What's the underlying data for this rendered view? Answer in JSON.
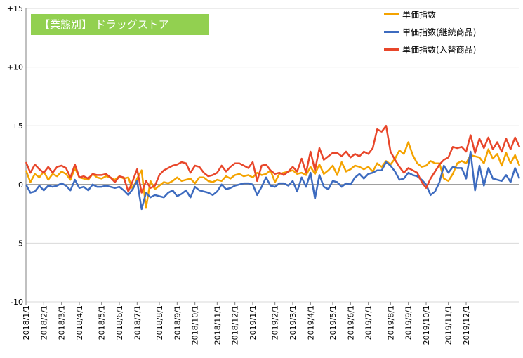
{
  "badge": {
    "label": "【業態別】 ドラッグストア"
  },
  "colors": {
    "s1": "#f4a300",
    "s2": "#3d6bbf",
    "s3": "#e8462a",
    "badge": "#92d050",
    "grid": "#d9d9d9",
    "axis": "#808080"
  },
  "chart_data": {
    "type": "line",
    "ylim": [
      -10,
      15
    ],
    "yticks": [
      -10,
      -5,
      0,
      5,
      10,
      15
    ],
    "ytick_labels": [
      "-10",
      "-5",
      "0",
      "+5",
      "+10",
      "+15"
    ],
    "xtick_labels": [
      "2018/1/1",
      "2018/2/1",
      "2018/3/1",
      "2018/4/1",
      "2018/5/1",
      "2018/6/1",
      "2018/7/1",
      "2018/8/1",
      "2018/9/1",
      "2018/10/1",
      "2018/11/1",
      "2018/12/1",
      "2019/1/1",
      "2019/2/1",
      "2019/3/1",
      "2019/4/1",
      "2019/5/1",
      "2019/6/1",
      "2019/7/1",
      "2019/8/1",
      "2019/9/1",
      "2019/10/1",
      "2019/11/1",
      "2019/12/1"
    ],
    "xtick_index": [
      0,
      4,
      8,
      12,
      17,
      21,
      25,
      30,
      34,
      38,
      43,
      47,
      51,
      56,
      60,
      64,
      69,
      73,
      77,
      82,
      86,
      90,
      95,
      99
    ],
    "grid": true,
    "legend_position": "top-right",
    "series": [
      {
        "name": "単価指数",
        "values": [
          1.2,
          0.2,
          0.9,
          0.6,
          1.1,
          0.4,
          0.9,
          0.7,
          1.1,
          0.9,
          0.4,
          1.4,
          0.6,
          0.5,
          0.4,
          0.9,
          0.6,
          0.5,
          0.7,
          0.6,
          0.4,
          0.7,
          0.5,
          0.6,
          -0.4,
          0.5,
          1.2,
          -2.0,
          0.3,
          -0.4,
          -0.1,
          0.2,
          0.1,
          0.3,
          0.6,
          0.3,
          0.4,
          0.5,
          0.1,
          0.6,
          0.6,
          0.3,
          0.2,
          0.4,
          0.3,
          0.7,
          0.5,
          0.8,
          0.9,
          0.7,
          0.8,
          0.6,
          1.0,
          0.8,
          0.9,
          1.2,
          0.2,
          0.9,
          1.0,
          1.1,
          1.2,
          0.9,
          1.0,
          0.8,
          1.5,
          0.9,
          1.7,
          0.9,
          1.2,
          1.6,
          0.8,
          1.9,
          1.1,
          1.3,
          1.6,
          1.5,
          1.3,
          1.5,
          1.1,
          1.8,
          1.5,
          2.0,
          1.7,
          2.2,
          2.9,
          2.6,
          3.6,
          2.5,
          1.8,
          1.5,
          1.6,
          2.0,
          1.8,
          1.8,
          0.5,
          0.3,
          0.9,
          1.8,
          2.0,
          1.8,
          2.5,
          2.4,
          2.3,
          1.8,
          3.0,
          2.2,
          2.6,
          1.6,
          2.7,
          1.8,
          2.5,
          1.6
        ]
      },
      {
        "name": "単価指数(継続商品)",
        "values": [
          0.0,
          -0.7,
          -0.6,
          -0.1,
          -0.5,
          -0.1,
          -0.2,
          -0.1,
          0.1,
          -0.1,
          -0.5,
          0.4,
          -0.3,
          -0.2,
          -0.5,
          0.0,
          -0.2,
          -0.2,
          -0.1,
          -0.2,
          -0.3,
          -0.2,
          -0.5,
          -0.9,
          -0.4,
          0.3,
          -2.1,
          -0.7,
          -1.1,
          -0.9,
          -1.0,
          -1.1,
          -0.7,
          -0.5,
          -1.0,
          -0.8,
          -0.5,
          -1.1,
          -0.2,
          -0.5,
          -0.6,
          -0.7,
          -0.9,
          -0.6,
          0.0,
          -0.4,
          -0.3,
          -0.1,
          0.0,
          0.1,
          0.1,
          0.0,
          -0.9,
          -0.2,
          0.6,
          -0.1,
          -0.2,
          0.1,
          0.1,
          -0.1,
          0.3,
          -0.6,
          0.6,
          -0.2,
          1.0,
          -1.2,
          0.8,
          -0.2,
          -0.4,
          0.3,
          0.2,
          -0.2,
          0.1,
          0.0,
          0.6,
          0.9,
          0.5,
          0.9,
          1.0,
          1.2,
          1.2,
          1.9,
          1.6,
          1.1,
          0.4,
          0.5,
          1.0,
          0.8,
          0.7,
          0.4,
          0.0,
          -0.9,
          -0.6,
          0.2,
          1.6,
          1.0,
          1.5,
          1.4,
          1.4,
          0.5,
          2.8,
          -0.5,
          1.6,
          -0.1,
          1.4,
          0.5,
          0.4,
          0.3,
          0.8,
          0.2,
          1.4,
          0.5
        ]
      },
      {
        "name": "単価指数(入替商品)",
        "values": [
          1.9,
          1.0,
          1.7,
          1.3,
          1.0,
          1.5,
          1.0,
          1.5,
          1.6,
          1.4,
          0.6,
          1.7,
          0.6,
          0.7,
          0.5,
          0.9,
          0.8,
          0.8,
          0.9,
          0.6,
          0.2,
          0.7,
          0.6,
          -0.6,
          0.3,
          1.3,
          -0.7,
          0.3,
          -0.3,
          -0.1,
          0.8,
          1.2,
          1.4,
          1.6,
          1.7,
          1.9,
          1.8,
          1.0,
          1.6,
          1.5,
          1.0,
          0.7,
          0.8,
          1.0,
          1.6,
          1.1,
          1.5,
          1.8,
          1.8,
          1.6,
          1.4,
          1.9,
          0.3,
          1.6,
          1.7,
          1.2,
          0.9,
          1.0,
          0.8,
          1.1,
          1.5,
          1.1,
          2.2,
          1.0,
          2.8,
          1.2,
          3.1,
          2.1,
          2.4,
          2.7,
          2.7,
          2.4,
          2.8,
          2.3,
          2.6,
          2.4,
          2.8,
          2.6,
          3.1,
          4.7,
          4.5,
          5.0,
          2.8,
          2.1,
          1.5,
          1.0,
          1.4,
          1.2,
          1.0,
          0.2,
          -0.3,
          0.5,
          1.1,
          1.7,
          2.1,
          2.3,
          3.2,
          3.1,
          3.2,
          2.8,
          4.2,
          2.7,
          3.9,
          3.1,
          4.0,
          3.0,
          3.6,
          2.8,
          3.9,
          3.0,
          4.0,
          3.2
        ]
      }
    ]
  }
}
